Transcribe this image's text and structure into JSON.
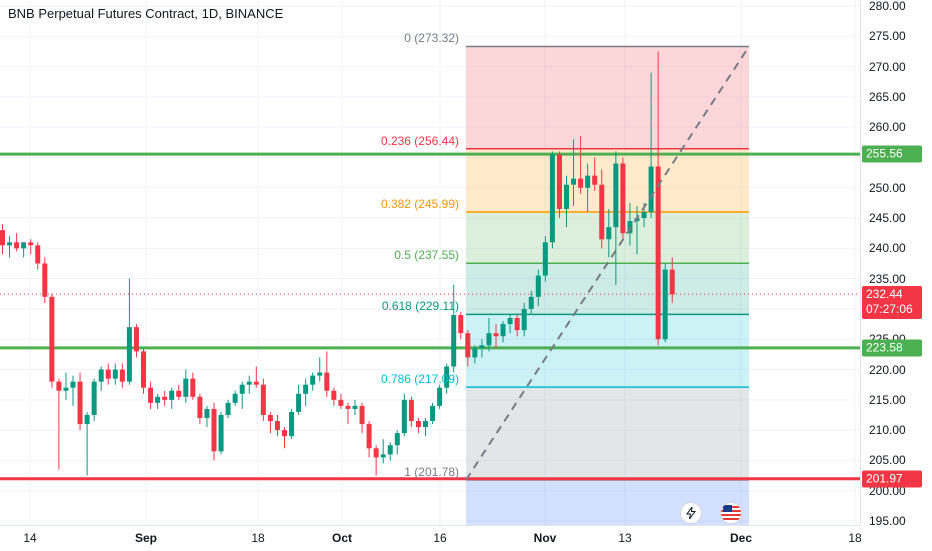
{
  "header": {
    "title": "BNB Perpetual Futures Contract, 1D, BINANCE"
  },
  "colors": {
    "candle_up": "#089981",
    "candle_down": "#f23645",
    "horizontal_line_green": "#4caf50",
    "horizontal_line_red": "#f23645",
    "current_price_badge": "#f23645",
    "green_badge": "#4caf50",
    "red_badge": "#f23645"
  },
  "chart_data": {
    "type": "candlestick",
    "symbol": "BNB Perpetual Futures Contract",
    "interval": "1D",
    "exchange": "BINANCE",
    "ylim": [
      195,
      280
    ],
    "y_ticks": [
      "280.00",
      "275.00",
      "270.00",
      "265.00",
      "260.00",
      "255.00",
      "250.00",
      "245.00",
      "240.00",
      "235.00",
      "230.00",
      "225.00",
      "220.00",
      "215.00",
      "210.00",
      "205.00",
      "200.00",
      "195.00"
    ],
    "x_ticks": [
      {
        "label": "14",
        "bold": false
      },
      {
        "label": "Sep",
        "bold": true
      },
      {
        "label": "18",
        "bold": false
      },
      {
        "label": "Oct",
        "bold": true
      },
      {
        "label": "16",
        "bold": false
      },
      {
        "label": "Nov",
        "bold": true
      },
      {
        "label": "13",
        "bold": false
      },
      {
        "label": "Dec",
        "bold": true
      },
      {
        "label": "18",
        "bold": false
      }
    ],
    "candles": [
      {
        "o": 243.0,
        "h": 244.0,
        "l": 239.0,
        "c": 240.5
      },
      {
        "o": 240.5,
        "h": 242.0,
        "l": 238.5,
        "c": 241.0
      },
      {
        "o": 241.0,
        "h": 242.5,
        "l": 239.5,
        "c": 240.0
      },
      {
        "o": 240.0,
        "h": 241.0,
        "l": 238.5,
        "c": 241.0
      },
      {
        "o": 241.0,
        "h": 241.5,
        "l": 239.0,
        "c": 240.5
      },
      {
        "o": 240.5,
        "h": 241.0,
        "l": 236.5,
        "c": 237.5
      },
      {
        "o": 237.5,
        "h": 238.5,
        "l": 231.0,
        "c": 232.0
      },
      {
        "o": 232.0,
        "h": 232.5,
        "l": 217.0,
        "c": 218.0
      },
      {
        "o": 218.0,
        "h": 218.5,
        "l": 203.5,
        "c": 216.5
      },
      {
        "o": 216.5,
        "h": 219.5,
        "l": 215.0,
        "c": 217.0
      },
      {
        "o": 217.0,
        "h": 219.0,
        "l": 214.0,
        "c": 218.0
      },
      {
        "o": 218.0,
        "h": 219.5,
        "l": 210.0,
        "c": 211.0
      },
      {
        "o": 211.0,
        "h": 213.0,
        "l": 202.5,
        "c": 212.5
      },
      {
        "o": 212.5,
        "h": 218.5,
        "l": 211.5,
        "c": 218.0
      },
      {
        "o": 218.0,
        "h": 220.5,
        "l": 216.5,
        "c": 220.0
      },
      {
        "o": 220.0,
        "h": 221.0,
        "l": 217.5,
        "c": 218.5
      },
      {
        "o": 218.5,
        "h": 221.0,
        "l": 217.5,
        "c": 220.0
      },
      {
        "o": 220.0,
        "h": 221.0,
        "l": 217.0,
        "c": 218.0
      },
      {
        "o": 218.0,
        "h": 235.0,
        "l": 217.5,
        "c": 227.0
      },
      {
        "o": 227.0,
        "h": 227.5,
        "l": 222.0,
        "c": 223.0
      },
      {
        "o": 223.0,
        "h": 223.5,
        "l": 216.0,
        "c": 217.0
      },
      {
        "o": 217.0,
        "h": 218.0,
        "l": 213.5,
        "c": 214.5
      },
      {
        "o": 214.5,
        "h": 216.0,
        "l": 213.5,
        "c": 215.5
      },
      {
        "o": 215.5,
        "h": 216.5,
        "l": 214.0,
        "c": 215.0
      },
      {
        "o": 215.0,
        "h": 217.0,
        "l": 213.5,
        "c": 216.5
      },
      {
        "o": 216.5,
        "h": 217.5,
        "l": 215.0,
        "c": 215.5
      },
      {
        "o": 215.5,
        "h": 220.0,
        "l": 214.5,
        "c": 218.5
      },
      {
        "o": 218.5,
        "h": 219.5,
        "l": 215.0,
        "c": 215.5
      },
      {
        "o": 215.5,
        "h": 216.0,
        "l": 211.0,
        "c": 212.0
      },
      {
        "o": 212.0,
        "h": 214.0,
        "l": 210.5,
        "c": 213.5
      },
      {
        "o": 213.5,
        "h": 214.5,
        "l": 205.0,
        "c": 206.5
      },
      {
        "o": 206.5,
        "h": 213.0,
        "l": 206.0,
        "c": 212.5
      },
      {
        "o": 212.5,
        "h": 215.0,
        "l": 212.0,
        "c": 214.5
      },
      {
        "o": 214.5,
        "h": 216.5,
        "l": 214.0,
        "c": 216.0
      },
      {
        "o": 216.0,
        "h": 218.0,
        "l": 213.5,
        "c": 217.5
      },
      {
        "o": 217.5,
        "h": 219.0,
        "l": 216.0,
        "c": 218.0
      },
      {
        "o": 218.0,
        "h": 220.5,
        "l": 217.0,
        "c": 217.5
      },
      {
        "o": 217.5,
        "h": 218.5,
        "l": 211.5,
        "c": 212.5
      },
      {
        "o": 212.5,
        "h": 213.0,
        "l": 209.5,
        "c": 211.5
      },
      {
        "o": 211.5,
        "h": 212.5,
        "l": 209.0,
        "c": 210.0
      },
      {
        "o": 210.0,
        "h": 210.5,
        "l": 207.0,
        "c": 209.0
      },
      {
        "o": 209.0,
        "h": 213.5,
        "l": 208.5,
        "c": 213.0
      },
      {
        "o": 213.0,
        "h": 217.5,
        "l": 212.5,
        "c": 216.0
      },
      {
        "o": 216.0,
        "h": 218.5,
        "l": 214.0,
        "c": 217.5
      },
      {
        "o": 217.5,
        "h": 219.5,
        "l": 216.5,
        "c": 219.0
      },
      {
        "o": 219.0,
        "h": 222.0,
        "l": 218.0,
        "c": 219.5
      },
      {
        "o": 219.5,
        "h": 223.0,
        "l": 215.5,
        "c": 216.5
      },
      {
        "o": 216.5,
        "h": 217.0,
        "l": 214.0,
        "c": 215.0
      },
      {
        "o": 215.0,
        "h": 216.0,
        "l": 213.5,
        "c": 214.0
      },
      {
        "o": 214.0,
        "h": 214.5,
        "l": 211.0,
        "c": 213.5
      },
      {
        "o": 213.5,
        "h": 215.0,
        "l": 212.5,
        "c": 214.0
      },
      {
        "o": 214.0,
        "h": 214.5,
        "l": 209.5,
        "c": 211.0
      },
      {
        "o": 211.0,
        "h": 211.5,
        "l": 205.5,
        "c": 207.0
      },
      {
        "o": 207.0,
        "h": 207.5,
        "l": 202.5,
        "c": 205.5
      },
      {
        "o": 205.5,
        "h": 208.5,
        "l": 204.5,
        "c": 206.0
      },
      {
        "o": 206.0,
        "h": 208.0,
        "l": 205.0,
        "c": 207.5
      },
      {
        "o": 207.5,
        "h": 210.0,
        "l": 206.0,
        "c": 209.5
      },
      {
        "o": 209.5,
        "h": 216.0,
        "l": 209.0,
        "c": 215.0
      },
      {
        "o": 215.0,
        "h": 215.5,
        "l": 210.5,
        "c": 211.5
      },
      {
        "o": 211.5,
        "h": 212.0,
        "l": 209.5,
        "c": 210.5
      },
      {
        "o": 210.5,
        "h": 212.0,
        "l": 209.0,
        "c": 211.5
      },
      {
        "o": 211.5,
        "h": 214.5,
        "l": 211.0,
        "c": 214.0
      },
      {
        "o": 214.0,
        "h": 217.5,
        "l": 213.5,
        "c": 217.0
      },
      {
        "o": 217.0,
        "h": 221.0,
        "l": 216.0,
        "c": 220.5
      },
      {
        "o": 220.5,
        "h": 234.0,
        "l": 219.5,
        "c": 229.0
      },
      {
        "o": 229.0,
        "h": 229.5,
        "l": 225.0,
        "c": 226.0
      },
      {
        "o": 226.0,
        "h": 226.5,
        "l": 220.5,
        "c": 222.0
      },
      {
        "o": 222.0,
        "h": 224.0,
        "l": 221.0,
        "c": 223.5
      },
      {
        "o": 223.5,
        "h": 225.0,
        "l": 222.0,
        "c": 224.0
      },
      {
        "o": 224.0,
        "h": 228.5,
        "l": 223.0,
        "c": 226.0
      },
      {
        "o": 226.0,
        "h": 227.5,
        "l": 223.5,
        "c": 225.5
      },
      {
        "o": 225.5,
        "h": 228.0,
        "l": 224.5,
        "c": 227.5
      },
      {
        "o": 227.5,
        "h": 229.0,
        "l": 226.0,
        "c": 228.5
      },
      {
        "o": 228.5,
        "h": 229.0,
        "l": 225.5,
        "c": 226.5
      },
      {
        "o": 226.5,
        "h": 231.0,
        "l": 225.5,
        "c": 230.0
      },
      {
        "o": 230.0,
        "h": 233.0,
        "l": 229.0,
        "c": 232.0
      },
      {
        "o": 232.0,
        "h": 236.5,
        "l": 230.5,
        "c": 235.5
      },
      {
        "o": 235.5,
        "h": 242.0,
        "l": 234.5,
        "c": 241.0
      },
      {
        "o": 241.0,
        "h": 256.0,
        "l": 240.0,
        "c": 255.5
      },
      {
        "o": 255.5,
        "h": 256.0,
        "l": 245.0,
        "c": 246.5
      },
      {
        "o": 246.5,
        "h": 252.0,
        "l": 243.5,
        "c": 250.5
      },
      {
        "o": 250.5,
        "h": 258.0,
        "l": 247.0,
        "c": 251.5
      },
      {
        "o": 251.5,
        "h": 258.5,
        "l": 249.0,
        "c": 250.0
      },
      {
        "o": 250.0,
        "h": 254.0,
        "l": 246.0,
        "c": 252.0
      },
      {
        "o": 252.0,
        "h": 255.0,
        "l": 249.5,
        "c": 250.5
      },
      {
        "o": 250.5,
        "h": 253.0,
        "l": 240.0,
        "c": 241.5
      },
      {
        "o": 241.5,
        "h": 246.5,
        "l": 238.5,
        "c": 243.5
      },
      {
        "o": 243.5,
        "h": 256.0,
        "l": 234.0,
        "c": 254.0
      },
      {
        "o": 254.0,
        "h": 255.0,
        "l": 241.5,
        "c": 242.5
      },
      {
        "o": 242.5,
        "h": 247.5,
        "l": 240.5,
        "c": 244.5
      },
      {
        "o": 244.5,
        "h": 247.0,
        "l": 239.0,
        "c": 245.0
      },
      {
        "o": 245.0,
        "h": 247.5,
        "l": 243.5,
        "c": 246.0
      },
      {
        "o": 246.0,
        "h": 269.0,
        "l": 245.0,
        "c": 253.5
      },
      {
        "o": 253.5,
        "h": 272.5,
        "l": 224.0,
        "c": 225.0
      },
      {
        "o": 225.0,
        "h": 237.5,
        "l": 224.5,
        "c": 236.5
      },
      {
        "o": 236.5,
        "h": 238.5,
        "l": 231.0,
        "c": 232.4
      }
    ],
    "fib_levels": [
      {
        "ratio": "0",
        "price": 273.32,
        "label": "0 (273.32)",
        "color": "#787b86",
        "fill": null
      },
      {
        "ratio": "0.236",
        "price": 256.44,
        "label": "0.236 (256.44)",
        "color": "#f23645",
        "fill": "rgba(242,54,69,0.2)"
      },
      {
        "ratio": "0.382",
        "price": 245.99,
        "label": "0.382 (245.99)",
        "color": "#ff9800",
        "fill": "rgba(255,152,0,0.2)"
      },
      {
        "ratio": "0.5",
        "price": 237.55,
        "label": "0.5 (237.55)",
        "color": "#4caf50",
        "fill": "rgba(76,175,80,0.2)"
      },
      {
        "ratio": "0.618",
        "price": 229.11,
        "label": "0.618 (229.11)",
        "color": "#089981",
        "fill": "rgba(8,153,129,0.2)"
      },
      {
        "ratio": "0.786",
        "price": 217.09,
        "label": "0.786 (217.09)",
        "color": "#00bcd4",
        "fill": "rgba(0,188,212,0.2)"
      },
      {
        "ratio": "1",
        "price": 201.78,
        "label": "1 (201.78)",
        "color": "#787b86",
        "fill": "rgba(120,123,134,0.2)"
      }
    ],
    "fib_extension_fill": "rgba(41,98,255,0.2)",
    "horizontal_lines": [
      {
        "price": 255.56,
        "label": "255.56",
        "color": "#4caf50"
      },
      {
        "price": 223.58,
        "label": "223.58",
        "color": "#4caf50"
      },
      {
        "price": 201.97,
        "label": "201.97",
        "color": "#f23645"
      }
    ],
    "current_price": {
      "value": 232.44,
      "label": "232.44",
      "countdown": "07:27:06"
    },
    "trend_line": {
      "from_price": 201.78,
      "to_price": 273.32,
      "style": "dashed"
    }
  },
  "icons": [
    {
      "name": "lightning-icon",
      "glyph": "⚡"
    },
    {
      "name": "us-flag-icon",
      "glyph": "☰"
    }
  ]
}
